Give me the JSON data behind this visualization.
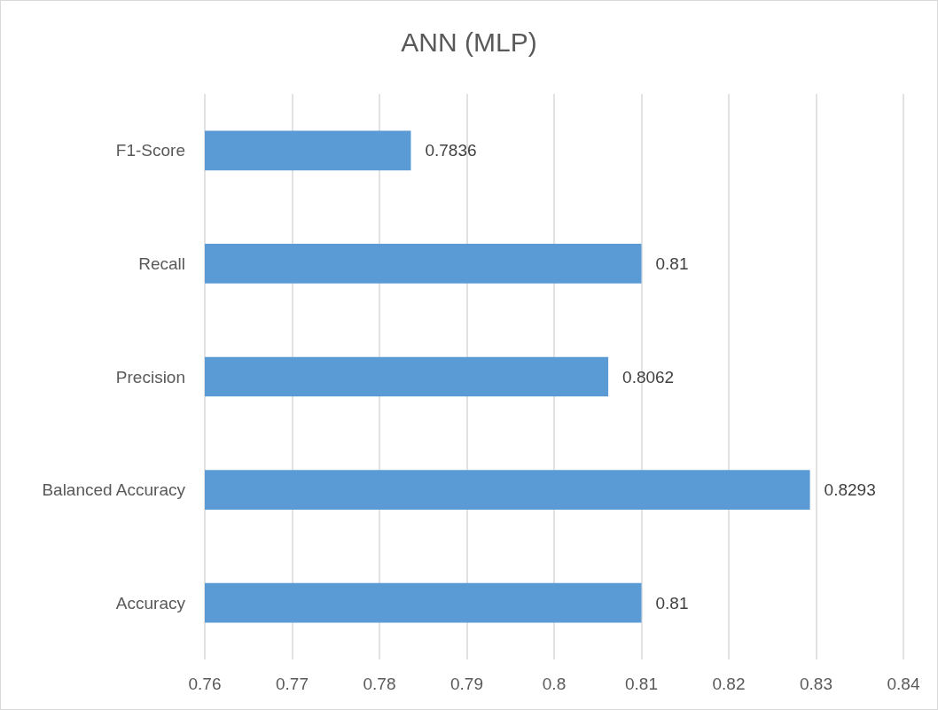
{
  "chart_data": {
    "type": "bar",
    "orientation": "horizontal",
    "title": "ANN (MLP)",
    "categories": [
      "F1-Score",
      "Recall",
      "Precision",
      "Balanced Accuracy",
      "Accuracy"
    ],
    "values": [
      0.7836,
      0.81,
      0.8062,
      0.8293,
      0.81
    ],
    "color": "#5b9bd5",
    "xlim": [
      0.76,
      0.84
    ],
    "xticks": [
      0.76,
      0.77,
      0.78,
      0.79,
      0.8,
      0.81,
      0.82,
      0.83,
      0.84
    ],
    "grid": "x",
    "data_labels": true
  }
}
